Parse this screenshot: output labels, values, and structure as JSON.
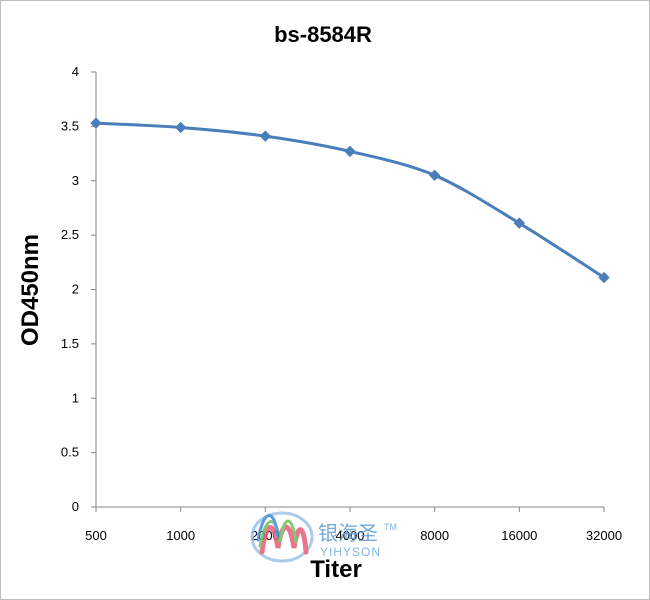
{
  "chart_data": {
    "type": "line",
    "title": "bs-8584R",
    "xlabel": "Titer",
    "ylabel": "OD450nm",
    "categories": [
      "500",
      "1000",
      "2000",
      "4000",
      "8000",
      "16000",
      "32000"
    ],
    "series": [
      {
        "values": [
          3.53,
          3.49,
          3.41,
          3.27,
          3.05,
          2.61,
          2.11
        ]
      }
    ],
    "ylim": [
      0,
      4
    ],
    "yticks": [
      "0",
      "0.5",
      "1",
      "1.5",
      "2",
      "2.5",
      "3",
      "3.5",
      "4"
    ],
    "grid": false,
    "legend": "none",
    "colors": {
      "series": "#4a7ebb",
      "axis": "#868686"
    }
  },
  "watermark": {
    "cn_text": "银海圣",
    "en_text": "YIHYSON",
    "tm": "TM"
  }
}
